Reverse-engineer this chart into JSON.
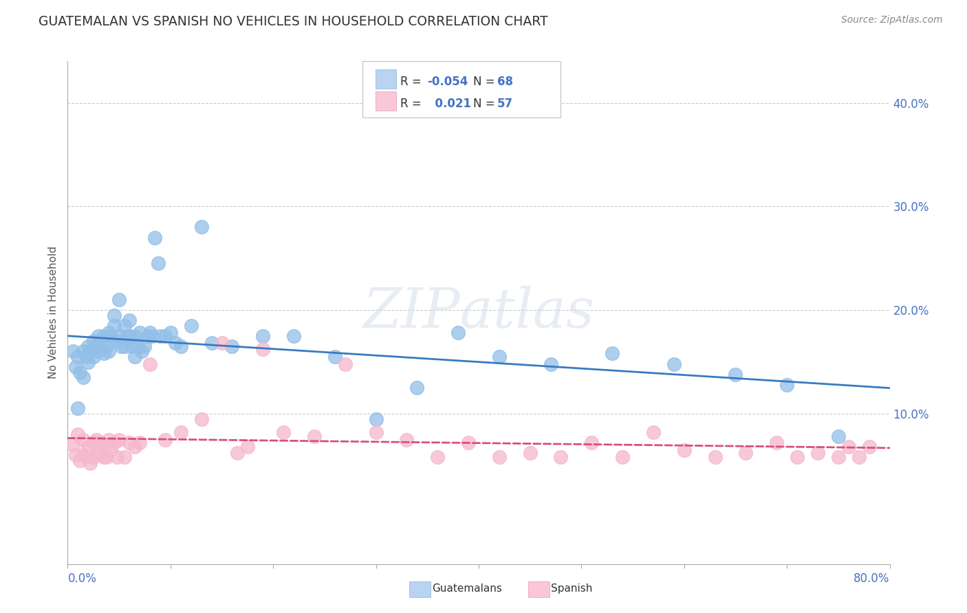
{
  "title": "GUATEMALAN VS SPANISH NO VEHICLES IN HOUSEHOLD CORRELATION CHART",
  "source": "Source: ZipAtlas.com",
  "ylabel": "No Vehicles in Household",
  "yticks": [
    "10.0%",
    "20.0%",
    "30.0%",
    "40.0%"
  ],
  "ytick_vals": [
    0.1,
    0.2,
    0.3,
    0.4
  ],
  "xlim": [
    0.0,
    0.8
  ],
  "ylim": [
    -0.045,
    0.44
  ],
  "legend_R_blue": "-0.054",
  "legend_N_blue": "68",
  "legend_R_pink": "0.021",
  "legend_N_pink": "57",
  "blue_scatter_color": "#92bfe8",
  "pink_scatter_color": "#f5b8cc",
  "blue_line_color": "#3a7abf",
  "pink_line_color": "#d94f7a",
  "blue_legend_fill": "#b8d4f0",
  "pink_legend_fill": "#f8c8d8",
  "guatemalans_x": [
    0.005,
    0.008,
    0.01,
    0.01,
    0.012,
    0.015,
    0.015,
    0.018,
    0.02,
    0.02,
    0.022,
    0.025,
    0.025,
    0.028,
    0.03,
    0.03,
    0.032,
    0.035,
    0.035,
    0.038,
    0.04,
    0.04,
    0.042,
    0.045,
    0.045,
    0.048,
    0.05,
    0.05,
    0.052,
    0.055,
    0.055,
    0.058,
    0.06,
    0.06,
    0.062,
    0.065,
    0.065,
    0.068,
    0.07,
    0.072,
    0.075,
    0.078,
    0.08,
    0.082,
    0.085,
    0.088,
    0.09,
    0.095,
    0.1,
    0.105,
    0.11,
    0.12,
    0.13,
    0.14,
    0.16,
    0.19,
    0.22,
    0.26,
    0.3,
    0.34,
    0.38,
    0.42,
    0.47,
    0.53,
    0.59,
    0.65,
    0.7,
    0.75
  ],
  "guatemalans_y": [
    0.16,
    0.145,
    0.155,
    0.105,
    0.14,
    0.16,
    0.135,
    0.155,
    0.165,
    0.15,
    0.16,
    0.17,
    0.155,
    0.165,
    0.175,
    0.16,
    0.17,
    0.175,
    0.158,
    0.165,
    0.178,
    0.16,
    0.175,
    0.195,
    0.185,
    0.17,
    0.21,
    0.175,
    0.165,
    0.185,
    0.165,
    0.175,
    0.19,
    0.175,
    0.165,
    0.175,
    0.155,
    0.165,
    0.178,
    0.16,
    0.165,
    0.175,
    0.178,
    0.175,
    0.27,
    0.245,
    0.175,
    0.175,
    0.178,
    0.168,
    0.165,
    0.185,
    0.28,
    0.168,
    0.165,
    0.175,
    0.175,
    0.155,
    0.095,
    0.125,
    0.178,
    0.155,
    0.148,
    0.158,
    0.148,
    0.138,
    0.128,
    0.078
  ],
  "spanish_x": [
    0.005,
    0.008,
    0.01,
    0.012,
    0.015,
    0.015,
    0.018,
    0.02,
    0.022,
    0.025,
    0.025,
    0.028,
    0.03,
    0.032,
    0.035,
    0.035,
    0.038,
    0.04,
    0.042,
    0.045,
    0.048,
    0.05,
    0.055,
    0.06,
    0.065,
    0.07,
    0.08,
    0.095,
    0.11,
    0.13,
    0.15,
    0.165,
    0.175,
    0.19,
    0.21,
    0.24,
    0.27,
    0.3,
    0.33,
    0.36,
    0.39,
    0.42,
    0.45,
    0.48,
    0.51,
    0.54,
    0.57,
    0.6,
    0.63,
    0.66,
    0.69,
    0.71,
    0.73,
    0.75,
    0.76,
    0.77,
    0.78
  ],
  "spanish_y": [
    0.07,
    0.06,
    0.08,
    0.055,
    0.075,
    0.06,
    0.058,
    0.068,
    0.052,
    0.072,
    0.058,
    0.075,
    0.062,
    0.072,
    0.058,
    0.068,
    0.058,
    0.075,
    0.065,
    0.072,
    0.058,
    0.075,
    0.058,
    0.072,
    0.068,
    0.072,
    0.148,
    0.075,
    0.082,
    0.095,
    0.168,
    0.062,
    0.068,
    0.162,
    0.082,
    0.078,
    0.148,
    0.082,
    0.075,
    0.058,
    0.072,
    0.058,
    0.062,
    0.058,
    0.072,
    0.058,
    0.082,
    0.065,
    0.058,
    0.062,
    0.072,
    0.058,
    0.062,
    0.058,
    0.068,
    0.058,
    0.068
  ]
}
